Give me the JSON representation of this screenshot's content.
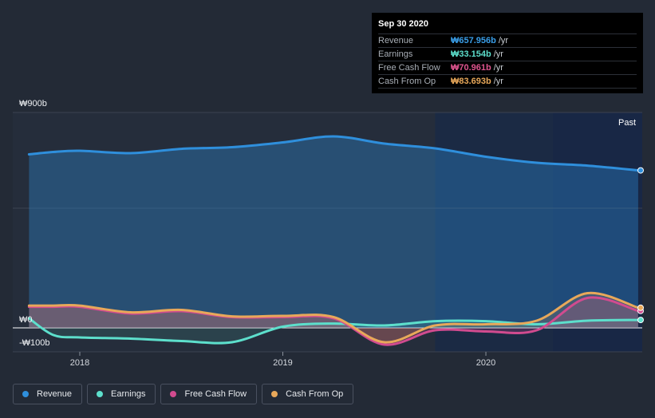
{
  "chart_data": {
    "type": "area",
    "title": "",
    "xlabel": "",
    "ylabel": "",
    "ylim": [
      -100,
      900
    ],
    "y_labels": [
      "₩900b",
      "₩0",
      "-₩100b"
    ],
    "y_label_values": [
      900,
      0,
      -100
    ],
    "x_ticks": [
      {
        "label": "2018",
        "x": 2018.0
      },
      {
        "label": "2019",
        "x": 2019.0
      },
      {
        "label": "2020",
        "x": 2020.0
      }
    ],
    "xlim": [
      2017.67,
      2020.77
    ],
    "forecast_start": 2019.75,
    "past_label": "Past",
    "series": [
      {
        "name": "Revenue",
        "color": "#2f8fdc",
        "x": [
          2017.75,
          2017.87,
          2018.0,
          2018.25,
          2018.5,
          2018.75,
          2019.0,
          2019.25,
          2019.5,
          2019.75,
          2020.0,
          2020.25,
          2020.5,
          2020.75
        ],
        "values": [
          725,
          735,
          740,
          730,
          748,
          755,
          775,
          800,
          770,
          750,
          715,
          690,
          678,
          658
        ]
      },
      {
        "name": "Earnings",
        "color": "#5ddfcc",
        "x": [
          2017.75,
          2017.87,
          2018.0,
          2018.25,
          2018.5,
          2018.75,
          2019.0,
          2019.25,
          2019.5,
          2019.75,
          2020.0,
          2020.25,
          2020.5,
          2020.75
        ],
        "values": [
          40,
          -30,
          -40,
          -45,
          -55,
          -60,
          5,
          18,
          10,
          28,
          28,
          15,
          30,
          33
        ]
      },
      {
        "name": "Free Cash Flow",
        "color": "#d14b8f",
        "x": [
          2017.75,
          2017.87,
          2018.0,
          2018.25,
          2018.5,
          2018.75,
          2019.0,
          2019.25,
          2019.5,
          2019.75,
          2020.0,
          2020.25,
          2020.5,
          2020.75
        ],
        "values": [
          88,
          88,
          88,
          60,
          70,
          45,
          45,
          40,
          -70,
          -10,
          -15,
          -10,
          125,
          71
        ]
      },
      {
        "name": "Cash From Op",
        "color": "#e8a85a",
        "x": [
          2017.75,
          2017.87,
          2018.0,
          2018.25,
          2018.5,
          2018.75,
          2019.0,
          2019.25,
          2019.5,
          2019.75,
          2020.0,
          2020.25,
          2020.5,
          2020.75
        ],
        "values": [
          93,
          93,
          93,
          65,
          75,
          48,
          50,
          45,
          -60,
          10,
          15,
          30,
          145,
          84
        ]
      }
    ]
  },
  "tooltip": {
    "date": "Sep 30 2020",
    "rows": [
      {
        "name": "Revenue",
        "value": "₩657.956b",
        "unit": "/yr",
        "color": "#3a9ee8"
      },
      {
        "name": "Earnings",
        "value": "₩33.154b",
        "unit": "/yr",
        "color": "#5ddfcc"
      },
      {
        "name": "Free Cash Flow",
        "value": "₩70.961b",
        "unit": "/yr",
        "color": "#e0558f"
      },
      {
        "name": "Cash From Op",
        "value": "₩83.693b",
        "unit": "/yr",
        "color": "#e8a85a"
      }
    ]
  },
  "legend": [
    {
      "label": "Revenue",
      "color": "#2f8fdc"
    },
    {
      "label": "Earnings",
      "color": "#5ddfcc"
    },
    {
      "label": "Free Cash Flow",
      "color": "#d14b8f"
    },
    {
      "label": "Cash From Op",
      "color": "#e8a85a"
    }
  ]
}
